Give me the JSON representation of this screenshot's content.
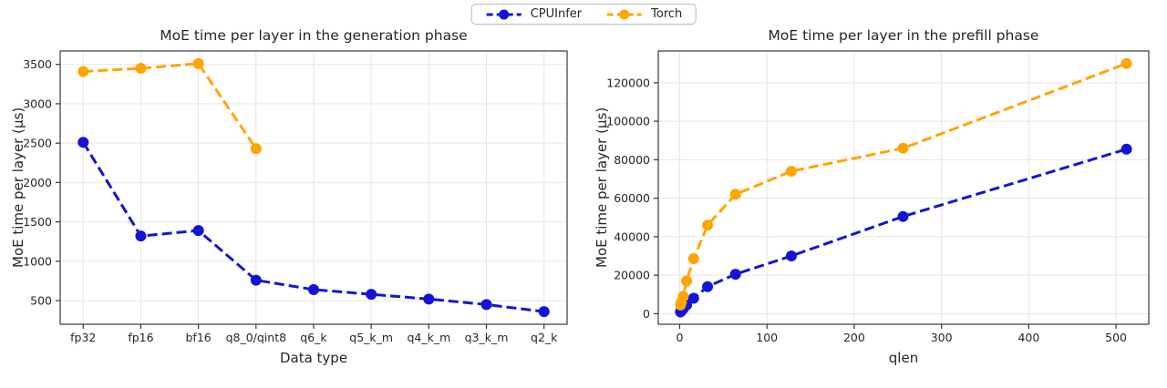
{
  "legend": {
    "items": [
      {
        "label": "CPUInfer",
        "color": "#1414d4"
      },
      {
        "label": "Torch",
        "color": "#ffa500"
      }
    ]
  },
  "chart_data": [
    {
      "type": "line",
      "title": "MoE time per layer in the generation phase",
      "xlabel": "Data type",
      "ylabel": "MoE time per layer (µs)",
      "categories": [
        "fp32",
        "fp16",
        "bf16",
        "q8_0/qint8",
        "q6_k",
        "q5_k_m",
        "q4_k_m",
        "q3_k_m",
        "q2_k"
      ],
      "ylim": [
        200,
        3670
      ],
      "yticks": [
        500,
        1000,
        1500,
        2000,
        2500,
        3000,
        3500
      ],
      "grid": true,
      "legend_position": "top-center-shared",
      "series": [
        {
          "name": "CPUInfer",
          "color": "#1414d4",
          "values": [
            2510,
            1320,
            1390,
            760,
            640,
            580,
            520,
            450,
            360
          ]
        },
        {
          "name": "Torch",
          "color": "#ffa500",
          "values": [
            3410,
            3450,
            3510,
            2430,
            null,
            null,
            null,
            null,
            null
          ]
        }
      ]
    },
    {
      "type": "line",
      "title": "MoE time per layer in the prefill phase",
      "xlabel": "qlen",
      "ylabel": "MoE time per layer (µs)",
      "xlim": [
        -24.5,
        537.5
      ],
      "xticks": [
        0,
        100,
        200,
        300,
        400,
        500
      ],
      "ylim": [
        -5500,
        136500
      ],
      "yticks": [
        0,
        20000,
        40000,
        60000,
        80000,
        100000,
        120000
      ],
      "grid": true,
      "series": [
        {
          "name": "CPUInfer",
          "color": "#1414d4",
          "x": [
            1,
            2,
            4,
            8,
            16,
            32,
            64,
            128,
            256,
            512
          ],
          "values": [
            900,
            1500,
            2500,
            4500,
            8000,
            14000,
            20500,
            30000,
            50500,
            85500
          ]
        },
        {
          "name": "Torch",
          "color": "#ffa500",
          "x": [
            1,
            2,
            4,
            8,
            16,
            32,
            64,
            128,
            256,
            512
          ],
          "values": [
            4500,
            6000,
            9000,
            17000,
            28500,
            46000,
            62000,
            74000,
            86000,
            130000
          ]
        }
      ]
    }
  ]
}
